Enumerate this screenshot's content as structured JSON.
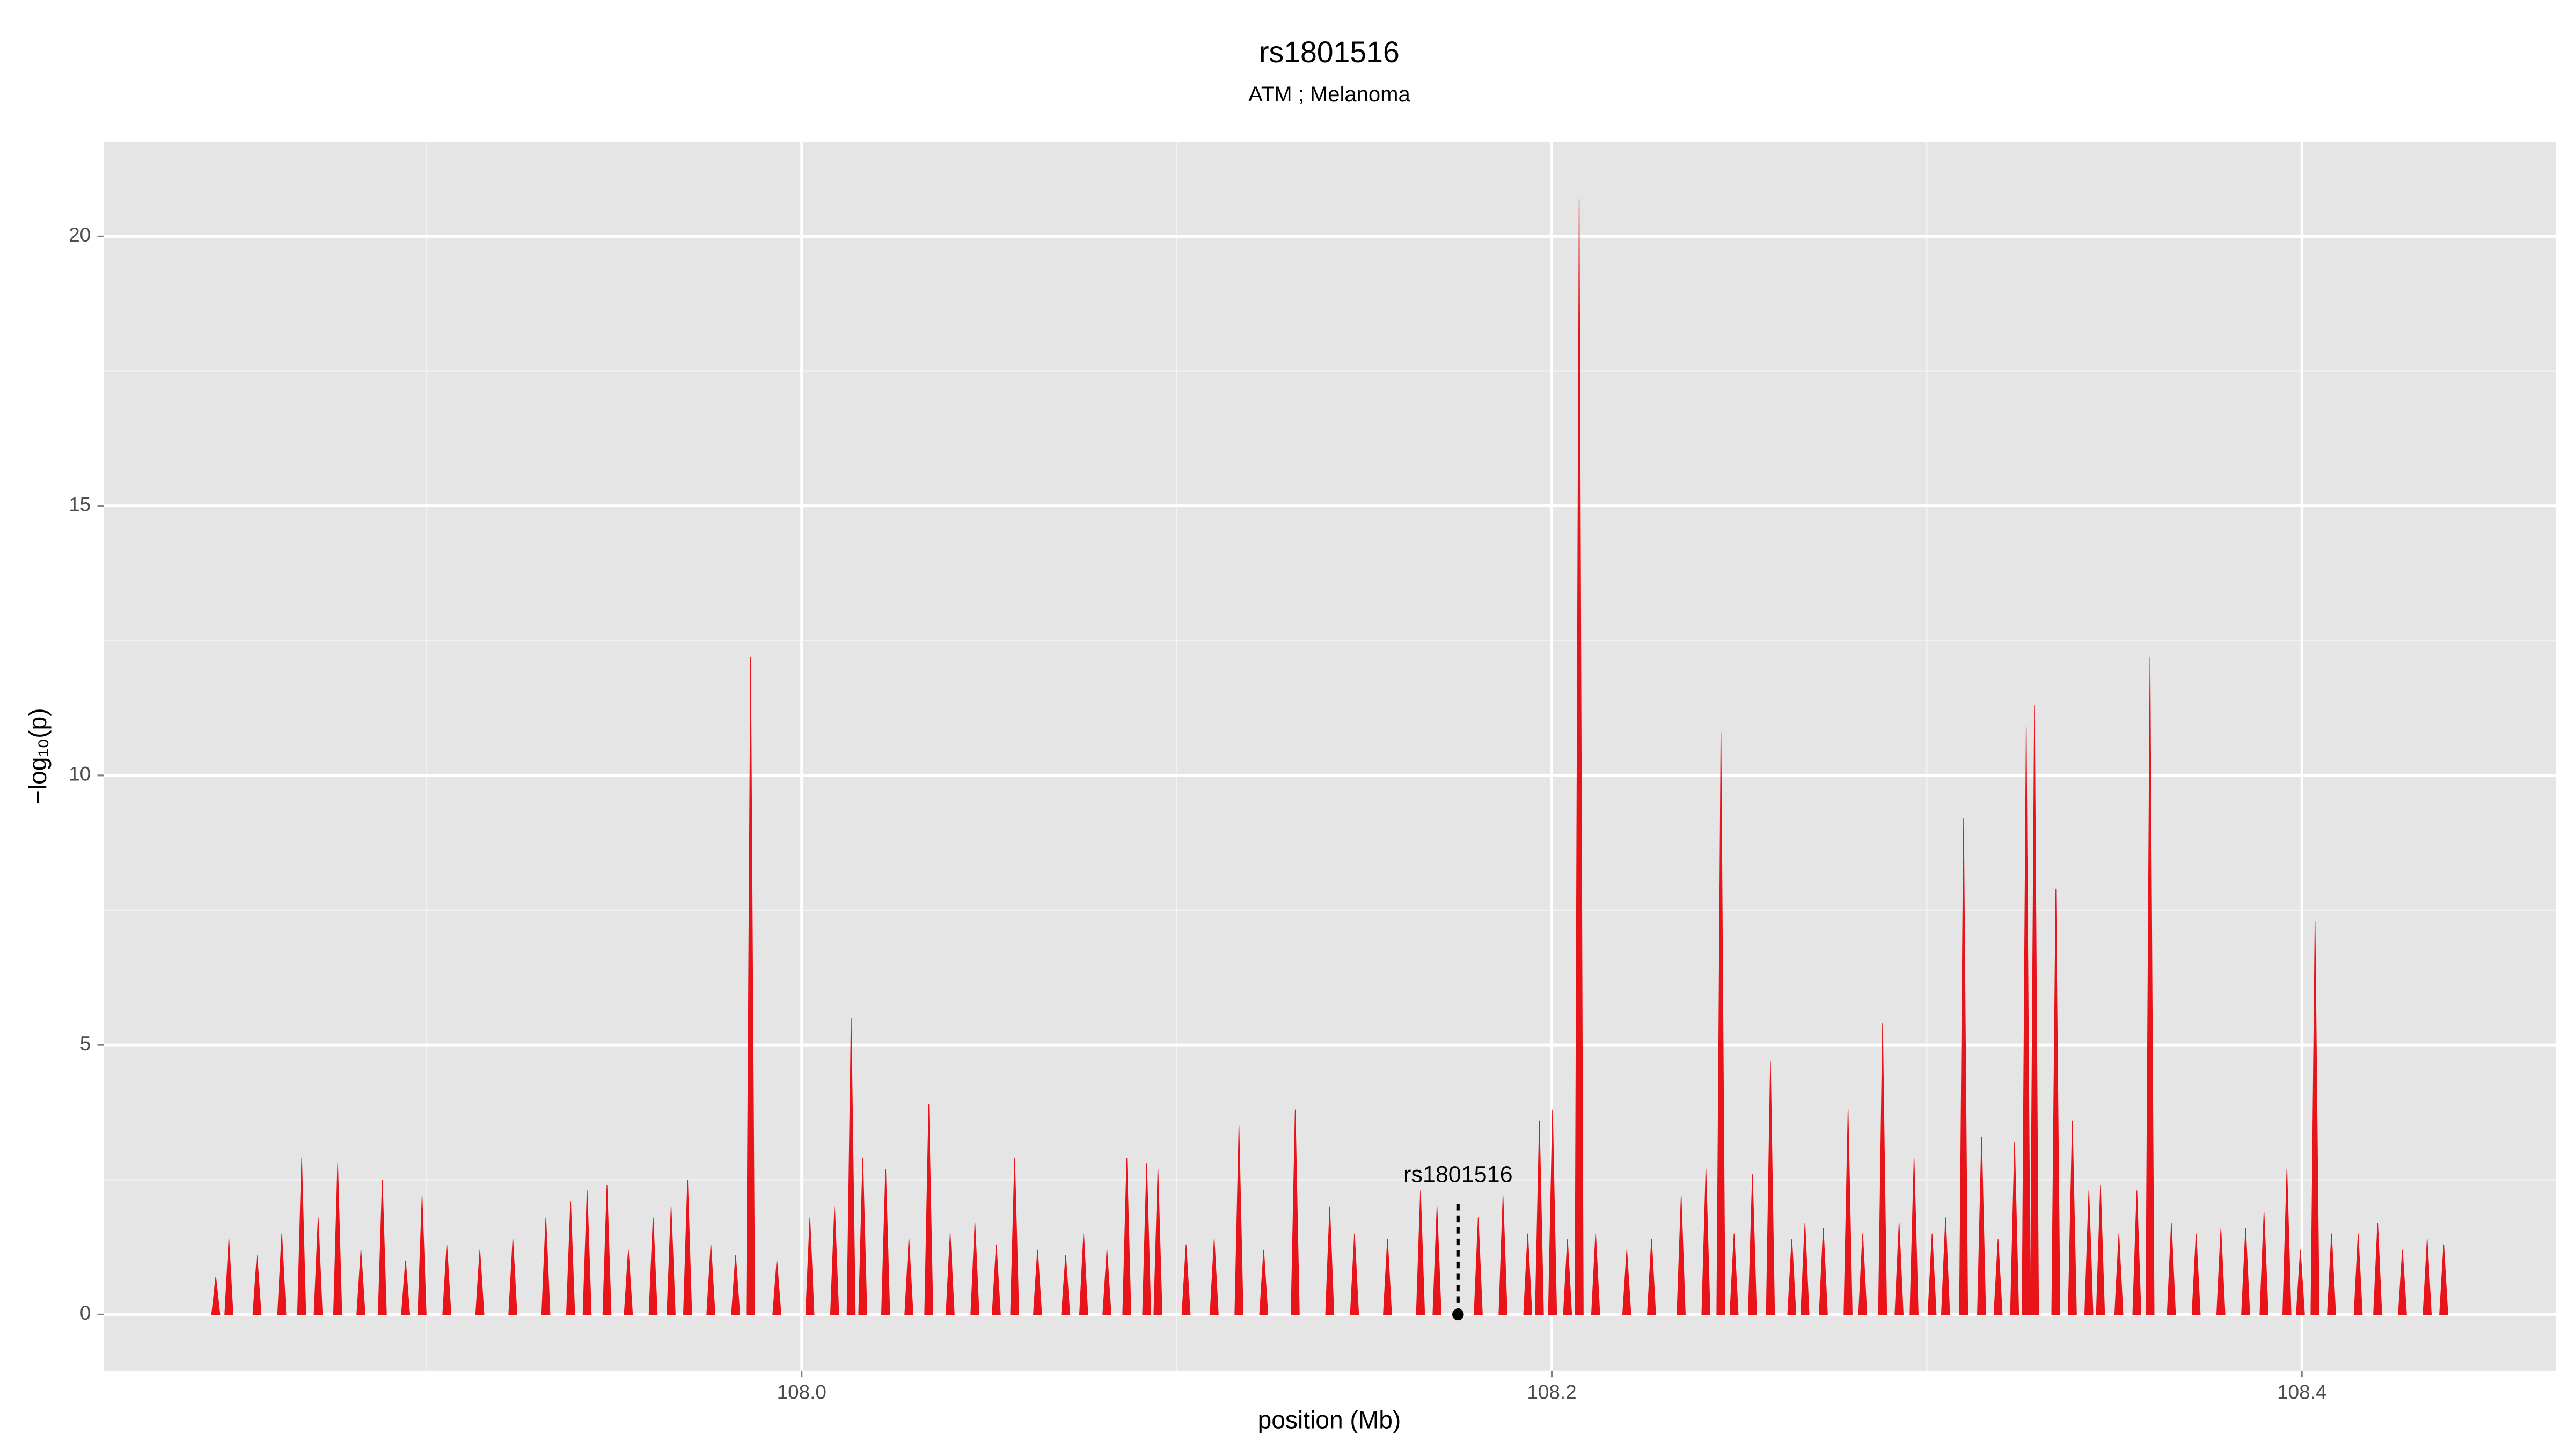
{
  "chart_data": {
    "type": "spike",
    "title": "rs1801516",
    "subtitle": "ATM ; Melanoma",
    "x_label": "position (Mb)",
    "y_label": "−log₁₀(p)",
    "color": "#e8141a",
    "grid": true,
    "xlim": [
      107.814,
      108.4678
    ],
    "xticks": [
      {
        "value": 108,
        "label": "108.0"
      },
      108.2,
      108.4
    ],
    "xminorticks": [
      107.9,
      108.1,
      108.3
    ],
    "ylim": [
      -1.04,
      21.75
    ],
    "yticks": [
      0,
      5,
      10,
      15,
      20
    ],
    "yminorticks": [
      2.5,
      7.5,
      12.5,
      17.5
    ],
    "annotation": {
      "label": "rs1801516",
      "x": 108.175,
      "y": 0
    },
    "x": [
      107.8438,
      107.8473,
      107.8548,
      107.8614,
      107.8667,
      107.8711,
      107.8763,
      107.8825,
      107.8882,
      107.8944,
      107.8988,
      107.9054,
      107.9142,
      107.923,
      107.9318,
      107.9384,
      107.9428,
      107.9481,
      107.9538,
      107.9604,
      107.9652,
      107.9696,
      107.9758,
      107.9824,
      107.9864,
      107.9934,
      108.0022,
      108.0088,
      108.0132,
      108.0163,
      108.0224,
      108.0286,
      108.0339,
      108.0396,
      108.0462,
      108.0519,
      108.0568,
      108.0629,
      108.0704,
      108.0752,
      108.0814,
      108.0867,
      108.092,
      108.095,
      108.1025,
      108.11,
      108.1166,
      108.1232,
      108.1316,
      108.1408,
      108.1474,
      108.1562,
      108.165,
      108.1694,
      108.1804,
      108.187,
      108.1936,
      108.1967,
      108.2002,
      108.2042,
      108.2073,
      108.2117,
      108.22,
      108.2266,
      108.2345,
      108.2411,
      108.2451,
      108.2486,
      108.2535,
      108.2583,
      108.264,
      108.2675,
      108.2724,
      108.279,
      108.2829,
      108.2882,
      108.2926,
      108.2966,
      108.3014,
      108.305,
      108.3098,
      108.3146,
      108.319,
      108.3234,
      108.3265,
      108.3287,
      108.3344,
      108.3388,
      108.3432,
      108.3463,
      108.3512,
      108.356,
      108.3595,
      108.3652,
      108.3718,
      108.3784,
      108.385,
      108.3899,
      108.396,
      108.3996,
      108.4035,
      108.4079,
      108.415,
      108.4202,
      108.4268,
      108.4334,
      108.4378
    ],
    "values": [
      0.7,
      1.4,
      1.1,
      1.5,
      2.9,
      1.8,
      2.8,
      1.2,
      2.5,
      1.0,
      2.2,
      1.3,
      1.2,
      1.4,
      1.8,
      2.1,
      2.3,
      2.4,
      1.2,
      1.8,
      2.0,
      2.5,
      1.3,
      1.1,
      12.2,
      1.0,
      1.8,
      2.0,
      5.5,
      2.9,
      2.7,
      1.4,
      3.9,
      1.5,
      1.7,
      1.3,
      2.9,
      1.2,
      1.1,
      1.5,
      1.2,
      2.9,
      2.8,
      2.7,
      1.3,
      1.4,
      3.5,
      1.2,
      3.8,
      2.0,
      1.5,
      1.4,
      2.3,
      2.0,
      1.8,
      2.2,
      1.5,
      3.6,
      3.8,
      1.4,
      20.7,
      1.5,
      1.2,
      1.4,
      2.2,
      2.7,
      10.8,
      1.5,
      2.6,
      4.7,
      1.4,
      1.7,
      1.6,
      3.8,
      1.5,
      5.4,
      1.7,
      2.9,
      1.5,
      1.8,
      9.2,
      3.3,
      1.4,
      3.2,
      10.9,
      11.3,
      7.9,
      3.6,
      2.3,
      2.4,
      1.5,
      2.3,
      12.2,
      1.7,
      1.5,
      1.6,
      1.6,
      1.9,
      2.7,
      1.2,
      7.3,
      1.5,
      1.5,
      1.7,
      1.2,
      1.4,
      1.3
    ]
  }
}
